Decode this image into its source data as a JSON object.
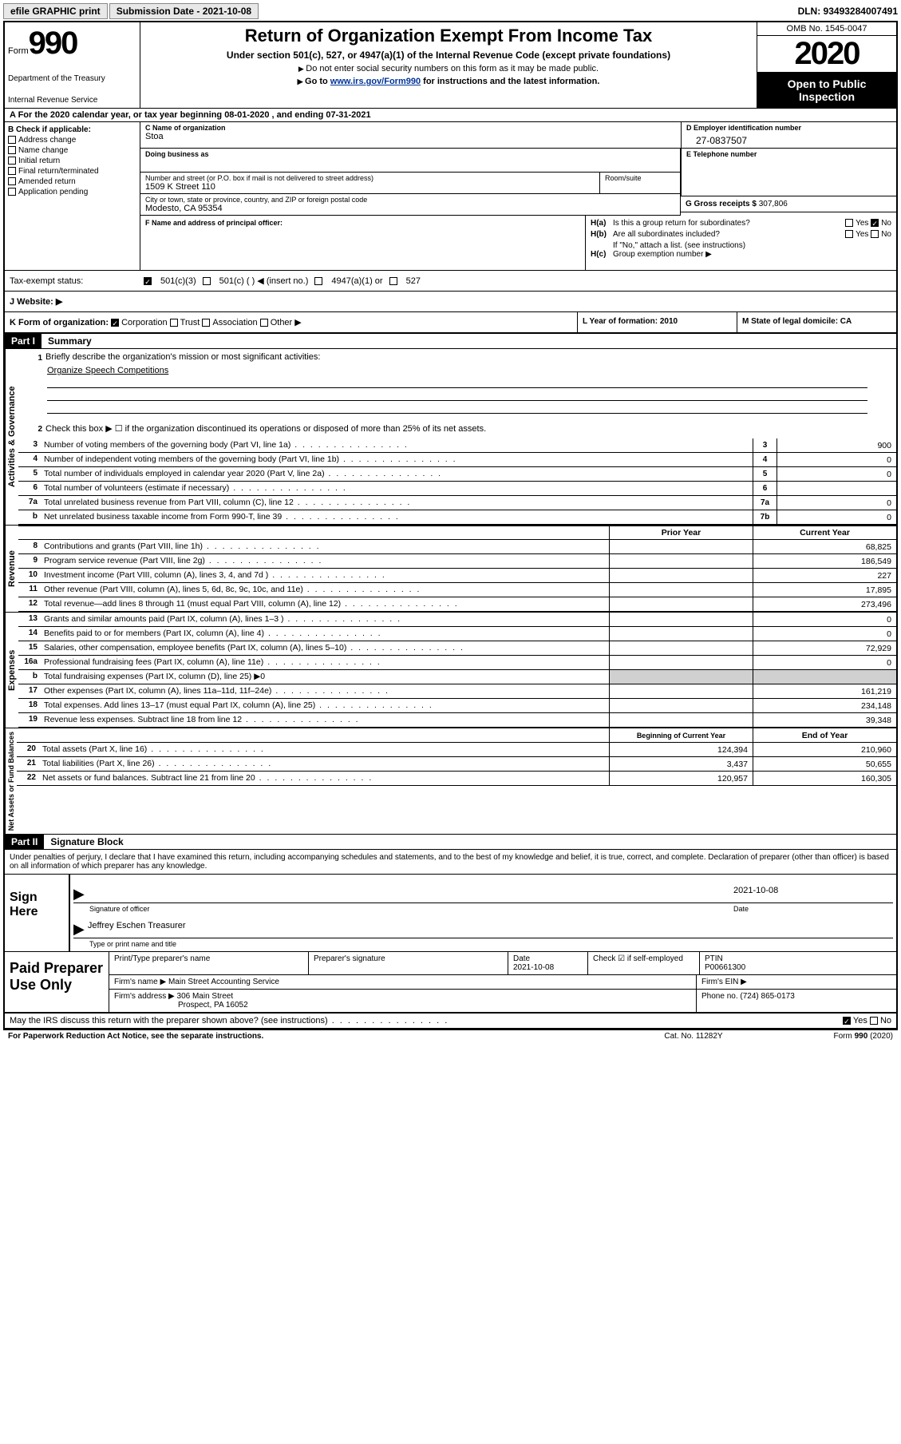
{
  "topbar": {
    "efile": "efile GRAPHIC print",
    "submission_label": "Submission Date - 2021-10-08",
    "dln": "DLN: 93493284007491"
  },
  "header": {
    "form_word": "Form",
    "form_number": "990",
    "dept1": "Department of the Treasury",
    "dept2": "Internal Revenue Service",
    "title": "Return of Organization Exempt From Income Tax",
    "subtitle": "Under section 501(c), 527, or 4947(a)(1) of the Internal Revenue Code (except private foundations)",
    "note1": "Do not enter social security numbers on this form as it may be made public.",
    "note2_pre": "Go to ",
    "note2_link": "www.irs.gov/Form990",
    "note2_post": " for instructions and the latest information.",
    "omb": "OMB No. 1545-0047",
    "year": "2020",
    "open_public": "Open to Public Inspection"
  },
  "row_a": "A For the 2020 calendar year, or tax year beginning 08-01-2020   , and ending 07-31-2021",
  "col_b": {
    "header": "B Check if applicable:",
    "items": [
      "Address change",
      "Name change",
      "Initial return",
      "Final return/terminated",
      "Amended return",
      "Application pending"
    ]
  },
  "section_c": {
    "name_lbl": "C Name of organization",
    "name_val": "Stoa",
    "dba_lbl": "Doing business as",
    "addr_lbl": "Number and street (or P.O. box if mail is not delivered to street address)",
    "addr_val": "1509 K Street 110",
    "room_lbl": "Room/suite",
    "city_lbl": "City or town, state or province, country, and ZIP or foreign postal code",
    "city_val": "Modesto, CA  95354"
  },
  "section_d": {
    "lbl": "D Employer identification number",
    "val": "27-0837507"
  },
  "section_e": {
    "lbl": "E Telephone number",
    "val": ""
  },
  "section_g": {
    "lbl": "G Gross receipts $",
    "val": "307,806"
  },
  "section_f": {
    "lbl": "F  Name and address of principal officer:"
  },
  "section_h": {
    "ha": "Is this a group return for subordinates?",
    "hb": "Are all subordinates included?",
    "hb_note": "If \"No,\" attach a list. (see instructions)",
    "hc": "Group exemption number ▶",
    "yes": "Yes",
    "no": "No"
  },
  "tax_status": {
    "label": "Tax-exempt status:",
    "opts": [
      "501(c)(3)",
      "501(c) (  ) ◀ (insert no.)",
      "4947(a)(1) or",
      "527"
    ]
  },
  "website": "J    Website: ▶",
  "k_row": {
    "k": "K Form of organization:",
    "opts": [
      "Corporation",
      "Trust",
      "Association",
      "Other ▶"
    ],
    "l": "L Year of formation: 2010",
    "m": "M State of legal domicile: CA"
  },
  "part1": {
    "header": "Part I",
    "title": "Summary",
    "side_ag": "Activities & Governance",
    "side_rev": "Revenue",
    "side_exp": "Expenses",
    "side_net": "Net Assets or Fund Balances",
    "l1": "Briefly describe the organization's mission or most significant activities:",
    "l1_val": "Organize Speech Competitions",
    "l2": "Check this box ▶ ☐  if the organization discontinued its operations or disposed of more than 25% of its net assets.",
    "lines_ag": [
      {
        "n": "3",
        "t": "Number of voting members of the governing body (Part VI, line 1a)",
        "box": "3",
        "v": "900"
      },
      {
        "n": "4",
        "t": "Number of independent voting members of the governing body (Part VI, line 1b)",
        "box": "4",
        "v": "0"
      },
      {
        "n": "5",
        "t": "Total number of individuals employed in calendar year 2020 (Part V, line 2a)",
        "box": "5",
        "v": "0"
      },
      {
        "n": "6",
        "t": "Total number of volunteers (estimate if necessary)",
        "box": "6",
        "v": ""
      },
      {
        "n": "7a",
        "t": "Total unrelated business revenue from Part VIII, column (C), line 12",
        "box": "7a",
        "v": "0"
      },
      {
        "n": "b",
        "t": "Net unrelated business taxable income from Form 990-T, line 39",
        "box": "7b",
        "v": "0"
      }
    ],
    "col_prior": "Prior Year",
    "col_current": "Current Year",
    "lines_rev": [
      {
        "n": "8",
        "t": "Contributions and grants (Part VIII, line 1h)",
        "p": "",
        "c": "68,825"
      },
      {
        "n": "9",
        "t": "Program service revenue (Part VIII, line 2g)",
        "p": "",
        "c": "186,549"
      },
      {
        "n": "10",
        "t": "Investment income (Part VIII, column (A), lines 3, 4, and 7d )",
        "p": "",
        "c": "227"
      },
      {
        "n": "11",
        "t": "Other revenue (Part VIII, column (A), lines 5, 6d, 8c, 9c, 10c, and 11e)",
        "p": "",
        "c": "17,895"
      },
      {
        "n": "12",
        "t": "Total revenue—add lines 8 through 11 (must equal Part VIII, column (A), line 12)",
        "p": "",
        "c": "273,496"
      }
    ],
    "lines_exp": [
      {
        "n": "13",
        "t": "Grants and similar amounts paid (Part IX, column (A), lines 1–3 )",
        "p": "",
        "c": "0"
      },
      {
        "n": "14",
        "t": "Benefits paid to or for members (Part IX, column (A), line 4)",
        "p": "",
        "c": "0"
      },
      {
        "n": "15",
        "t": "Salaries, other compensation, employee benefits (Part IX, column (A), lines 5–10)",
        "p": "",
        "c": "72,929"
      },
      {
        "n": "16a",
        "t": "Professional fundraising fees (Part IX, column (A), line 11e)",
        "p": "",
        "c": "0"
      },
      {
        "n": "b",
        "t": "Total fundraising expenses (Part IX, column (D), line 25) ▶0",
        "p": "shaded",
        "c": "shaded"
      },
      {
        "n": "17",
        "t": "Other expenses (Part IX, column (A), lines 11a–11d, 11f–24e)",
        "p": "",
        "c": "161,219"
      },
      {
        "n": "18",
        "t": "Total expenses. Add lines 13–17 (must equal Part IX, column (A), line 25)",
        "p": "",
        "c": "234,148"
      },
      {
        "n": "19",
        "t": "Revenue less expenses. Subtract line 18 from line 12",
        "p": "",
        "c": "39,348"
      }
    ],
    "col_begin": "Beginning of Current Year",
    "col_end": "End of Year",
    "lines_net": [
      {
        "n": "20",
        "t": "Total assets (Part X, line 16)",
        "p": "124,394",
        "c": "210,960"
      },
      {
        "n": "21",
        "t": "Total liabilities (Part X, line 26)",
        "p": "3,437",
        "c": "50,655"
      },
      {
        "n": "22",
        "t": "Net assets or fund balances. Subtract line 21 from line 20",
        "p": "120,957",
        "c": "160,305"
      }
    ]
  },
  "part2": {
    "header": "Part II",
    "title": "Signature Block",
    "declaration": "Under penalties of perjury, I declare that I have examined this return, including accompanying schedules and statements, and to the best of my knowledge and belief, it is true, correct, and complete. Declaration of preparer (other than officer) is based on all information of which preparer has any knowledge.",
    "sign_here": "Sign Here",
    "sig_officer": "Signature of officer",
    "sig_date": "Date",
    "sig_date_val": "2021-10-08",
    "sig_name": "Jeffrey Eschen Treasurer",
    "sig_name_lbl": "Type or print name and title",
    "paid": "Paid Preparer Use Only",
    "prep_name_lbl": "Print/Type preparer's name",
    "prep_sig_lbl": "Preparer's signature",
    "prep_date_lbl": "Date",
    "prep_date_val": "2021-10-08",
    "prep_check": "Check ☑ if self-employed",
    "ptin_lbl": "PTIN",
    "ptin_val": "P00661300",
    "firm_name_lbl": "Firm's name    ▶",
    "firm_name_val": "Main Street Accounting Service",
    "firm_ein_lbl": "Firm's EIN ▶",
    "firm_addr_lbl": "Firm's address ▶",
    "firm_addr_val1": "306 Main Street",
    "firm_addr_val2": "Prospect, PA  16052",
    "phone_lbl": "Phone no.",
    "phone_val": "(724) 865-0173",
    "may_irs": "May the IRS discuss this return with the preparer shown above? (see instructions)"
  },
  "footer": {
    "paperwork": "For Paperwork Reduction Act Notice, see the separate instructions.",
    "cat": "Cat. No. 11282Y",
    "form": "Form 990 (2020)"
  }
}
